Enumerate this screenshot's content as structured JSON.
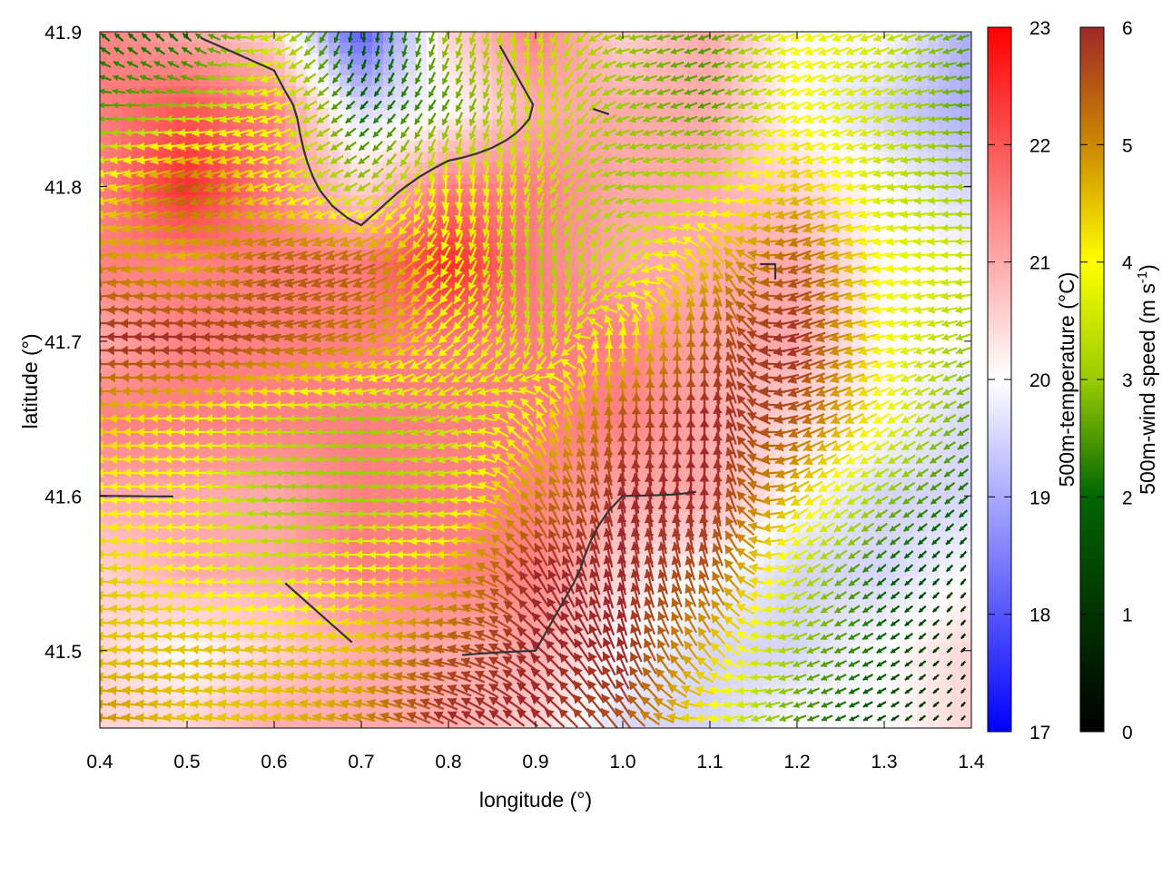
{
  "chart_data": {
    "type": "heatmap",
    "overlay": "vector-field",
    "xlabel": "longitude (°)",
    "ylabel": "latitude (°)",
    "xlim": [
      0.4,
      1.4
    ],
    "ylim": [
      41.45,
      41.9
    ],
    "xticks": [
      "0.4",
      "0.5",
      "0.6",
      "0.7",
      "0.8",
      "0.9",
      "1.0",
      "1.1",
      "1.2",
      "1.3",
      "1.4"
    ],
    "yticks": [
      "41.5",
      "41.6",
      "41.7",
      "41.8",
      "41.9"
    ],
    "grid": false,
    "contour_color": "#333333",
    "contour_level": 21,
    "grid_lon": [
      0.4,
      0.5,
      0.6,
      0.7,
      0.8,
      0.9,
      1.0,
      1.1,
      1.2,
      1.3,
      1.4
    ],
    "grid_lat": [
      41.9,
      41.85,
      41.8,
      41.75,
      41.7,
      41.65,
      41.6,
      41.55,
      41.5,
      41.45
    ],
    "temperature": [
      [
        21.5,
        21,
        20.5,
        18,
        20.5,
        21.5,
        20.5,
        21,
        20,
        20,
        19
      ],
      [
        21.5,
        22,
        21.5,
        19.5,
        20,
        21,
        21,
        21,
        20,
        19.5,
        19
      ],
      [
        21.5,
        22.5,
        21.5,
        20.5,
        21.5,
        21.5,
        21,
        21,
        20.5,
        20,
        19.5
      ],
      [
        21.5,
        21.5,
        21.5,
        21.5,
        22.5,
        21.5,
        21,
        21,
        21,
        20,
        20
      ],
      [
        21,
        21.5,
        21.5,
        21.5,
        21.5,
        21.5,
        21.5,
        21,
        21,
        20,
        20
      ],
      [
        21.5,
        21.5,
        21.5,
        21.5,
        21.5,
        21.5,
        21.5,
        21,
        20.5,
        20,
        19.5
      ],
      [
        21,
        21,
        21,
        21.5,
        21.5,
        21.5,
        21,
        21,
        20,
        19.5,
        19.5
      ],
      [
        20.5,
        21,
        21,
        21.5,
        21.5,
        21.5,
        20.5,
        20,
        19.5,
        19.5,
        20
      ],
      [
        20.5,
        20,
        20.5,
        21,
        21,
        21,
        20,
        19.5,
        19.5,
        20,
        20.5
      ],
      [
        20.5,
        20.5,
        21,
        21,
        21,
        20.5,
        19.5,
        19.5,
        20,
        20,
        20.5
      ]
    ],
    "wind_speed": [
      [
        2,
        2,
        3.5,
        1.5,
        3,
        3.5,
        3,
        2.5,
        4,
        3.5,
        2.5
      ],
      [
        2.5,
        3,
        4,
        2,
        2.5,
        3.5,
        3,
        2.5,
        4,
        3.5,
        2.5
      ],
      [
        4,
        5.5,
        4,
        3,
        4,
        3.5,
        3,
        3.5,
        4.5,
        3.5,
        3
      ],
      [
        5,
        4.5,
        5.5,
        5.5,
        4,
        3,
        3.5,
        4.5,
        5.5,
        4,
        3.5
      ],
      [
        6,
        6,
        5.5,
        5,
        4,
        3.5,
        4,
        5.5,
        6,
        4,
        3
      ],
      [
        4.5,
        4,
        3.5,
        3,
        3.5,
        4,
        5.5,
        6,
        5.5,
        4,
        2.5
      ],
      [
        4,
        4,
        3,
        3,
        3.5,
        5,
        6,
        6,
        4.5,
        3,
        2
      ],
      [
        4.5,
        4,
        3.5,
        4,
        4.5,
        6,
        6,
        5.5,
        3.5,
        2,
        1
      ],
      [
        4.5,
        4.5,
        4.5,
        4.5,
        5.5,
        6,
        6,
        4.5,
        3,
        2,
        0.5
      ],
      [
        5,
        4.5,
        4.5,
        5,
        6,
        6,
        5.5,
        4,
        2.5,
        1.5,
        0.5
      ]
    ],
    "wind_direction_deg": [
      [
        135,
        135,
        200,
        270,
        250,
        260,
        190,
        200,
        200,
        200,
        200
      ],
      [
        180,
        180,
        200,
        225,
        240,
        260,
        200,
        200,
        200,
        200,
        180
      ],
      [
        190,
        200,
        200,
        210,
        270,
        250,
        190,
        190,
        200,
        190,
        180
      ],
      [
        190,
        190,
        195,
        200,
        240,
        270,
        230,
        110,
        200,
        190,
        180
      ],
      [
        180,
        180,
        190,
        200,
        220,
        260,
        90,
        90,
        200,
        190,
        200
      ],
      [
        180,
        180,
        180,
        185,
        200,
        120,
        90,
        90,
        200,
        210,
        210
      ],
      [
        180,
        180,
        175,
        180,
        190,
        120,
        100,
        90,
        210,
        210,
        220
      ],
      [
        175,
        175,
        175,
        180,
        180,
        120,
        100,
        110,
        210,
        220,
        230
      ],
      [
        175,
        175,
        170,
        170,
        170,
        140,
        110,
        130,
        200,
        210,
        230
      ],
      [
        175,
        170,
        170,
        165,
        150,
        140,
        130,
        200,
        200,
        210,
        230
      ]
    ],
    "colorbars": [
      {
        "label": "500m-temperature (°C)",
        "min": 17,
        "max": 23,
        "ticks": [
          "17",
          "18",
          "19",
          "20",
          "21",
          "22",
          "23"
        ],
        "palette": [
          "#0000ff",
          "#ffffff",
          "#ff0000"
        ]
      },
      {
        "label": "500m-wind speed (m s",
        "label_sup": "-1",
        "label_end": ")",
        "min": 0,
        "max": 6,
        "ticks": [
          "0",
          "1",
          "2",
          "3",
          "4",
          "5",
          "6"
        ],
        "palette": [
          "#000000",
          "#003300",
          "#006600",
          "#99cc00",
          "#ffff00",
          "#cc8800",
          "#a0282a"
        ]
      }
    ]
  }
}
